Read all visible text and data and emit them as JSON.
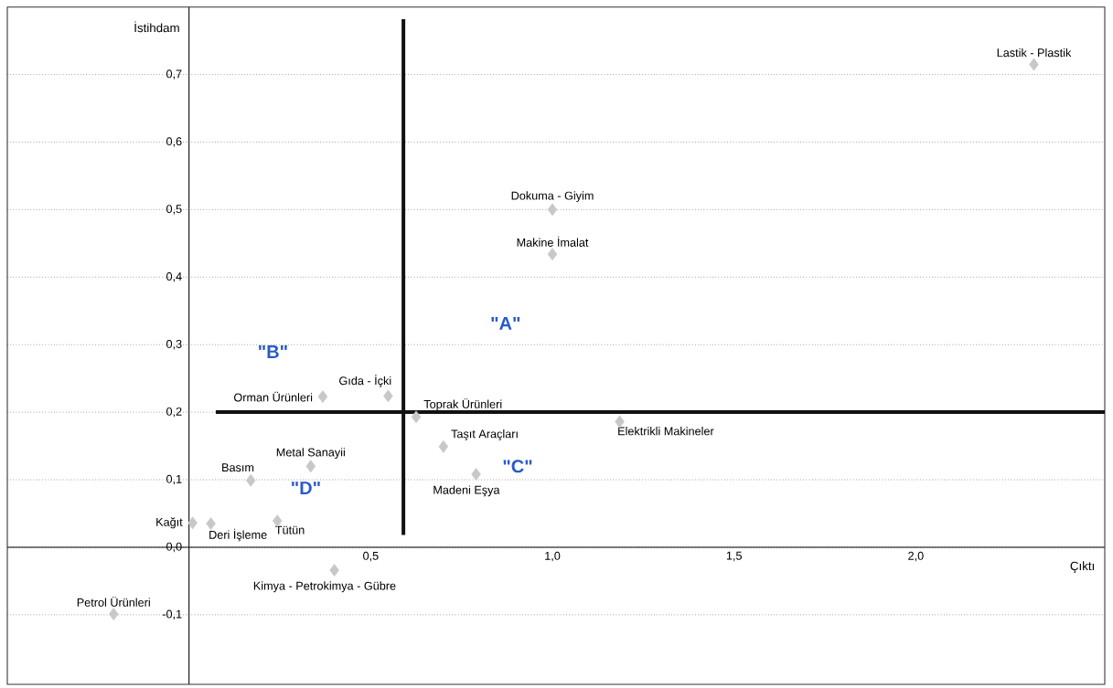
{
  "chart_data": {
    "type": "scatter",
    "xlabel": "Çıktı",
    "ylabel": "İstihdam",
    "marker": "diamond",
    "grid": "y",
    "xlim": [
      -0.5,
      2.52
    ],
    "ylim": [
      -0.203,
      0.8
    ],
    "xticks": [
      {
        "value": 0.5,
        "label": "0,5"
      },
      {
        "value": 1,
        "label": "1,0"
      },
      {
        "value": 1.5,
        "label": "1,5"
      },
      {
        "value": 2,
        "label": "2,0"
      }
    ],
    "yticks": [
      {
        "value": -0.1,
        "label": "-0,1"
      },
      {
        "value": 0,
        "label": "0,0"
      },
      {
        "value": 0.1,
        "label": "0,1"
      },
      {
        "value": 0.2,
        "label": "0,2"
      },
      {
        "value": 0.3,
        "label": "0,3"
      },
      {
        "value": 0.4,
        "label": "0,4"
      },
      {
        "value": 0.5,
        "label": "0,5"
      },
      {
        "value": 0.6,
        "label": "0,6"
      },
      {
        "value": 0.7,
        "label": "0,7"
      }
    ],
    "series": [
      {
        "name": "Lastik - Plastik",
        "color": "#c8c8c8",
        "x": [
          2.325
        ],
        "values": [
          0.715
        ]
      },
      {
        "name": "Dokuma - Giyim",
        "color": "#c8c8c8",
        "x": [
          1.0
        ],
        "values": [
          0.5
        ]
      },
      {
        "name": "Makine İmalat",
        "color": "#c8c8c8",
        "x": [
          1.0
        ],
        "values": [
          0.434
        ]
      },
      {
        "name": "Gıda - İçki",
        "color": "#c8c8c8",
        "x": [
          0.548
        ],
        "values": [
          0.224
        ]
      },
      {
        "name": "Orman Ürünleri",
        "color": "#c8c8c8",
        "x": [
          0.368
        ],
        "values": [
          0.223
        ]
      },
      {
        "name": "Toprak Ürünleri",
        "color": "#c8c8c8",
        "x": [
          0.625
        ],
        "values": [
          0.193
        ]
      },
      {
        "name": "Elektrikli Makineler",
        "color": "#c8c8c8",
        "x": [
          1.185
        ],
        "values": [
          0.186
        ]
      },
      {
        "name": "Taşıt Araçları",
        "color": "#c8c8c8",
        "x": [
          0.7
        ],
        "values": [
          0.149
        ]
      },
      {
        "name": "Madeni Eşya",
        "color": "#c8c8c8",
        "x": [
          0.79
        ],
        "values": [
          0.108
        ]
      },
      {
        "name": "Metal Sanayii",
        "color": "#c8c8c8",
        "x": [
          0.335
        ],
        "values": [
          0.12
        ]
      },
      {
        "name": "Basım",
        "color": "#c8c8c8",
        "x": [
          0.17
        ],
        "values": [
          0.099
        ]
      },
      {
        "name": "Tütün",
        "color": "#c8c8c8",
        "x": [
          0.243
        ],
        "values": [
          0.039
        ]
      },
      {
        "name": "Deri İşleme",
        "color": "#c8c8c8",
        "x": [
          0.06
        ],
        "values": [
          0.035
        ]
      },
      {
        "name": "Kağıt",
        "color": "#c8c8c8",
        "x": [
          0.01
        ],
        "values": [
          0.036
        ]
      },
      {
        "name": "Kimya - Petrokimya - Gübre",
        "color": "#c8c8c8",
        "x": [
          0.4
        ],
        "values": [
          -0.034
        ]
      },
      {
        "name": "Petrol Ürünleri",
        "color": "#c8c8c8",
        "x": [
          -0.2075
        ],
        "values": [
          -0.099
        ]
      }
    ],
    "ref_lines": [
      {
        "axis": "x",
        "value": 0.59,
        "color": "#111111"
      },
      {
        "axis": "y",
        "value": 0.2,
        "color": "#111111"
      }
    ],
    "annotations": [
      "\"A\"",
      "\"B\"",
      "\"C\"",
      "\"D\""
    ]
  }
}
